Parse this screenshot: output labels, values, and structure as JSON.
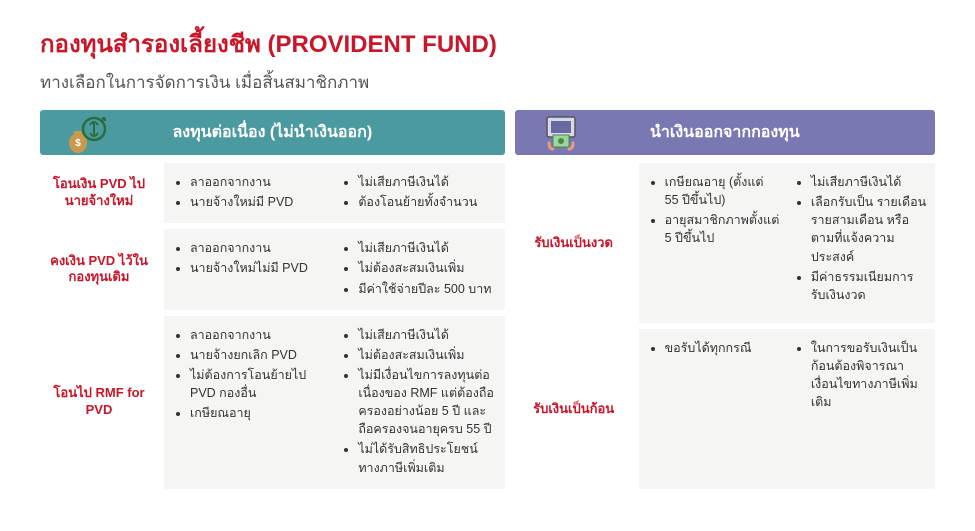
{
  "title": "กองทุนสำรองเลี้ยงชีพ (PROVIDENT FUND)",
  "subtitle": "ทางเลือกในการจัดการเงิน เมื่อสิ้นสมาชิกภาพ",
  "left": {
    "header": "ลงทุนต่อเนื่อง (ไม่นำเงินออก)",
    "sections": [
      {
        "label": "โอนเงิน PVD ไปนายจ้างใหม่",
        "col1": [
          "ลาออกจากงาน",
          "นายจ้างใหม่มี PVD"
        ],
        "col2": [
          "ไม่เสียภาษีเงินได้",
          "ต้องโอนย้ายทั้งจำนวน"
        ]
      },
      {
        "label": "คงเงิน PVD ไว้ในกองทุนเดิม",
        "col1": [
          "ลาออกจากงาน",
          "นายจ้างใหม่ไม่มี PVD"
        ],
        "col2": [
          "ไม่เสียภาษีเงินได้",
          "ไม่ต้องสะสมเงินเพิ่ม",
          "มีค่าใช้จ่ายปีละ 500 บาท"
        ]
      },
      {
        "label": "โอนไป RMF for PVD",
        "col1": [
          "ลาออกจากงาน",
          "นายจ้างยกเลิก PVD",
          "ไม่ต้องการโอนย้ายไป PVD กองอื่น",
          "เกษียณอายุ"
        ],
        "col2": [
          "ไม่เสียภาษีเงินได้",
          "ไม่ต้องสะสมเงินเพิ่ม",
          "ไม่มีเงื่อนไขการลงทุนต่อเนื่องของ RMF แต่ต้องถือครองอย่างน้อย 5 ปี และถือครองจนอายุครบ 55 ปี",
          "ไม่ได้รับสิทธิประโยชน์ทางภาษีเพิ่มเติม"
        ]
      }
    ]
  },
  "right": {
    "header": "นำเงินออกจากกองทุน",
    "sections": [
      {
        "label": "รับเงินเป็นงวด",
        "col1": [
          "เกษียณอายุ (ตั้งแต่ 55 ปีขึ้นไป)",
          "อายุสมาชิกภาพตั้งแต่ 5 ปีขึ้นไป"
        ],
        "col2": [
          "ไม่เสียภาษีเงินได้",
          "เลือกรับเป็น รายเดือน รายสามเดือน หรือ ตามที่แจ้งความประสงค์",
          "มีค่าธรรมเนียมการรับเงินงวด"
        ]
      },
      {
        "label": "รับเงินเป็นก้อน",
        "col1": [
          "ขอรับได้ทุกกรณี"
        ],
        "col2": [
          "ในการขอรับเงินเป็นก้อนต้องพิจารณาเงื่อนไขทางภาษีเพิ่มเติม"
        ]
      }
    ]
  },
  "colors": {
    "accent_red": "#c8162a",
    "header_left": "#4a9aa0",
    "header_right": "#7a78b3",
    "box_bg": "#f5f5f3"
  }
}
